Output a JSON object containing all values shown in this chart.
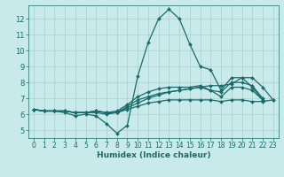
{
  "xlabel": "Humidex (Indice chaleur)",
  "bg_color": "#c8eaea",
  "grid_color": "#a8d0d0",
  "line_color": "#1a6b6b",
  "marker": "D",
  "markersize": 2.0,
  "linewidth": 0.9,
  "xlim": [
    -0.5,
    23.5
  ],
  "ylim": [
    4.5,
    12.85
  ],
  "yticks": [
    5,
    6,
    7,
    8,
    9,
    10,
    11,
    12
  ],
  "xticks": [
    0,
    1,
    2,
    3,
    4,
    5,
    6,
    7,
    8,
    9,
    10,
    11,
    12,
    13,
    14,
    15,
    16,
    17,
    18,
    19,
    20,
    21,
    22,
    23
  ],
  "lines": [
    [
      6.3,
      6.2,
      6.2,
      6.1,
      5.9,
      6.0,
      5.9,
      5.4,
      4.8,
      5.3,
      8.4,
      10.5,
      12.0,
      12.6,
      12.0,
      10.4,
      9.0,
      8.8,
      7.5,
      8.3,
      8.3,
      7.7,
      6.9,
      null
    ],
    [
      6.3,
      6.2,
      6.2,
      6.2,
      6.1,
      6.1,
      6.2,
      6.1,
      6.1,
      6.4,
      6.7,
      7.0,
      7.2,
      7.4,
      7.5,
      7.6,
      7.7,
      7.8,
      7.8,
      7.9,
      8.3,
      8.3,
      7.7,
      6.9
    ],
    [
      6.3,
      6.2,
      6.2,
      6.2,
      6.1,
      6.1,
      6.2,
      6.1,
      6.2,
      6.6,
      7.1,
      7.4,
      7.6,
      7.7,
      7.7,
      7.7,
      7.8,
      7.5,
      7.4,
      8.0,
      8.0,
      7.8,
      7.0,
      null
    ],
    [
      6.3,
      6.2,
      6.2,
      6.2,
      6.1,
      6.1,
      6.2,
      6.1,
      6.1,
      6.5,
      6.9,
      7.1,
      7.3,
      7.4,
      7.5,
      7.6,
      7.7,
      7.5,
      7.1,
      7.7,
      7.7,
      7.5,
      6.9,
      null
    ],
    [
      6.3,
      6.2,
      6.2,
      6.2,
      6.1,
      6.1,
      6.1,
      6.0,
      6.1,
      6.3,
      6.5,
      6.7,
      6.8,
      6.9,
      6.9,
      6.9,
      6.9,
      6.9,
      6.8,
      6.9,
      6.9,
      6.8,
      6.8,
      6.9
    ]
  ]
}
